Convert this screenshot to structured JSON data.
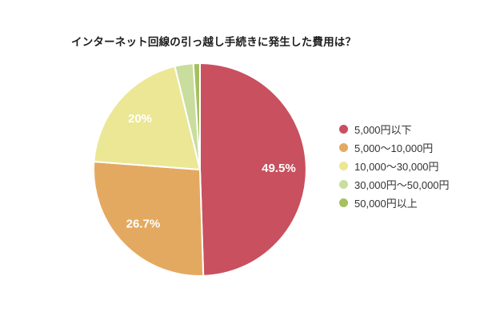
{
  "title": "インターネット回線の引っ越し手続きに発生した費用は？",
  "chart_data": {
    "type": "pie",
    "title": "インターネット回線の引っ越し手続きに発生した費用は？",
    "legend_position": "right",
    "start_angle_deg": 0,
    "direction": "clockwise",
    "label_color": "#ffffff",
    "background": "#ffffff",
    "slices": [
      {
        "label": "5,000円以下",
        "value": 49.5,
        "display": "49.5%",
        "color": "#c8505f"
      },
      {
        "label": "5,000〜10,000円",
        "value": 26.7,
        "display": "26.7%",
        "color": "#e4a960"
      },
      {
        "label": "10,000〜30,000円",
        "value": 20.0,
        "display": "20%",
        "color": "#ebe795"
      },
      {
        "label": "30,000円〜50,000円",
        "value": 2.8,
        "display": "",
        "color": "#c9dd9f"
      },
      {
        "label": "50,000円以上",
        "value": 1.0,
        "display": "",
        "color": "#a6c05f"
      }
    ]
  }
}
